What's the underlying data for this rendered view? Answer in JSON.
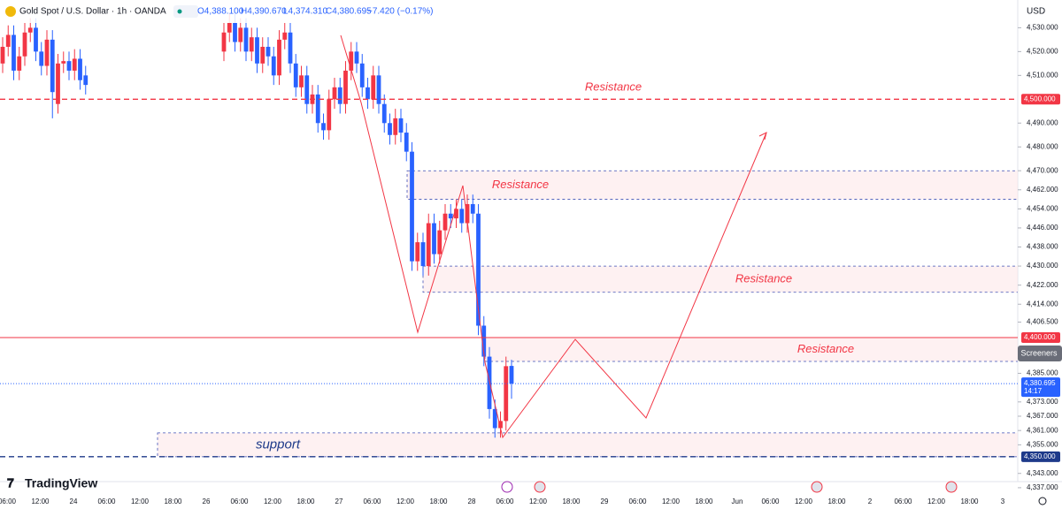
{
  "header": {
    "symbol": "Gold Spot / U.S. Dollar · 1h · OANDA",
    "open": "O4,388.100",
    "high": "H4,390.670",
    "low": "L4,374.310",
    "close": "C4,380.695",
    "change": "−7.420 (−0.17%)",
    "currency": "USD",
    "screeners": "Screeners",
    "brand": "TradingView",
    "countdown": "14:17"
  },
  "chart_data": {
    "type": "candlestick",
    "up_color": "#f23645",
    "down_color": "#2962ff",
    "open": [
      4515,
      4522,
      4527,
      4512,
      4518,
      4528,
      4530,
      4520,
      4514,
      4525,
      4498,
      4515,
      4516,
      4512,
      4517,
      4510,
      null,
      null,
      null,
      null,
      null,
      null,
      null,
      null,
      null,
      null,
      null,
      null,
      null,
      null,
      null,
      null,
      null,
      null,
      null,
      null,
      null,
      null,
      null,
      null,
      4520,
      4528,
      4532,
      4524,
      4530,
      4520,
      4526,
      4515,
      4522,
      4518,
      4510,
      4525,
      4528,
      4515,
      4505,
      4510,
      4498,
      4502,
      4490,
      4487,
      4500,
      4505,
      4498,
      4512,
      4520,
      4515,
      4505,
      4500,
      4510,
      4498,
      4490,
      4485,
      4492,
      4486,
      4478,
      4432,
      4440,
      4430,
      4448,
      4435,
      4445,
      4452,
      4450,
      4454,
      4448,
      4456,
      4452,
      4405,
      4392,
      4370,
      4362,
      4365,
      4388.1
    ],
    "high": [
      4526,
      4531,
      4531,
      4522,
      4532,
      4534,
      4534,
      4524,
      4529,
      4529,
      4519,
      4520,
      4520,
      4521,
      4521,
      4514,
      null,
      null,
      null,
      null,
      null,
      null,
      null,
      null,
      null,
      null,
      null,
      null,
      null,
      null,
      null,
      null,
      null,
      null,
      null,
      null,
      null,
      null,
      null,
      null,
      4532,
      4536,
      4536,
      4534,
      4534,
      4530,
      4530,
      4526,
      4526,
      4522,
      4529,
      4532,
      4532,
      4519,
      4514,
      4514,
      4506,
      4506,
      4494,
      4504,
      4509,
      4509,
      4516,
      4524,
      4524,
      4519,
      4509,
      4514,
      4514,
      4502,
      4494,
      4496,
      4496,
      4490,
      4482,
      4444,
      4444,
      4452,
      4452,
      4449,
      4456,
      4456,
      4458,
      4458,
      4460,
      4460,
      4456,
      4409,
      4396,
      4374,
      4369,
      4392,
      4390.67
    ],
    "low": [
      4511,
      4518,
      4508,
      4508,
      4514,
      4524,
      4516,
      4510,
      4510,
      4492,
      4494,
      4511,
      4508,
      4508,
      4504,
      4502,
      null,
      null,
      null,
      null,
      null,
      null,
      null,
      null,
      null,
      null,
      null,
      null,
      null,
      null,
      null,
      null,
      null,
      null,
      null,
      null,
      null,
      null,
      null,
      null,
      4516,
      4524,
      4520,
      4520,
      4516,
      4516,
      4511,
      4511,
      4514,
      4506,
      4506,
      4521,
      4511,
      4501,
      4501,
      4494,
      4494,
      4486,
      4483,
      4483,
      4496,
      4494,
      4494,
      4508,
      4511,
      4501,
      4496,
      4496,
      4494,
      4486,
      4481,
      4481,
      4482,
      4474,
      4428,
      4428,
      4426,
      4426,
      4431,
      4431,
      4441,
      4446,
      4446,
      4444,
      4444,
      4448,
      4401,
      4388,
      4366,
      4358,
      4358,
      4361,
      4374.31
    ],
    "close": [
      4522,
      4527,
      4512,
      4518,
      4528,
      4530,
      4520,
      4514,
      4525,
      4503,
      4515,
      4516,
      4512,
      4517,
      4508,
      4506,
      null,
      null,
      null,
      null,
      null,
      null,
      null,
      null,
      null,
      null,
      null,
      null,
      null,
      null,
      null,
      null,
      null,
      null,
      null,
      null,
      null,
      null,
      null,
      null,
      4528,
      4532,
      4524,
      4530,
      4520,
      4526,
      4515,
      4522,
      4518,
      4510,
      4525,
      4528,
      4515,
      4505,
      4510,
      4498,
      4502,
      4490,
      4487,
      4500,
      4505,
      4498,
      4512,
      4520,
      4515,
      4505,
      4500,
      4510,
      4498,
      4490,
      4485,
      4492,
      4486,
      4478,
      4432,
      4440,
      4430,
      4448,
      4435,
      4445,
      4452,
      4450,
      4454,
      4448,
      4456,
      4452,
      4405,
      4392,
      4370,
      4362,
      4365,
      4388,
      4380.695
    ],
    "x_labels": [
      "06:00",
      "12:00",
      "24",
      "06:00",
      "12:00",
      "18:00",
      "26",
      "06:00",
      "12:00",
      "18:00",
      "27",
      "06:00",
      "12:00",
      "18:00",
      "28",
      "06:00",
      "12:00",
      "18:00",
      "29",
      "06:00",
      "12:00",
      "18:00",
      "Jun",
      "06:00",
      "12:00",
      "18:00",
      "2",
      "06:00",
      "12:00",
      "18:00",
      "3"
    ],
    "ylim": [
      4342.9,
      4532
    ],
    "yticks": [
      {
        "value": 4530,
        "label": "4,530.000"
      },
      {
        "value": 4520,
        "label": "4,520.000"
      },
      {
        "value": 4510,
        "label": "4,510.000"
      },
      {
        "value": 4490,
        "label": "4,490.000"
      },
      {
        "value": 4480,
        "label": "4,480.000"
      },
      {
        "value": 4470,
        "label": "4,470.000"
      },
      {
        "value": 4462,
        "label": "4,462.000"
      },
      {
        "value": 4454,
        "label": "4,454.000"
      },
      {
        "value": 4446,
        "label": "4,446.000"
      },
      {
        "value": 4438,
        "label": "4,438.000"
      },
      {
        "value": 4430,
        "label": "4,430.000"
      },
      {
        "value": 4422,
        "label": "4,422.000"
      },
      {
        "value": 4414,
        "label": "4,414.000"
      },
      {
        "value": 4406.5,
        "label": "4,406.500"
      },
      {
        "value": 4385,
        "label": "4,385.000"
      },
      {
        "value": 4373,
        "label": "4,373.000"
      },
      {
        "value": 4367,
        "label": "4,367.000"
      },
      {
        "value": 4361,
        "label": "4,361.000"
      },
      {
        "value": 4355,
        "label": "4,355.000"
      },
      {
        "value": 4343,
        "label": "4,343.000"
      },
      {
        "value": 4337,
        "label": "4,337.000"
      }
    ],
    "levels": [
      {
        "value": 4500,
        "label": "4,500.000",
        "color": "#f23645",
        "dashed": true,
        "text": "Resistance"
      },
      {
        "value": 4400,
        "label": "4,400.000",
        "color": "#f23645",
        "dashed": false
      },
      {
        "value": 4350,
        "label": "4,350.000",
        "color": "#1e3a8a",
        "dashed": true
      }
    ],
    "zones": [
      {
        "text": "Resistance",
        "low": 4458,
        "high": 4470
      },
      {
        "text": "Resistance",
        "low": 4419,
        "high": 4430
      },
      {
        "text": "Resistance",
        "low": 4390,
        "high": 4400
      },
      {
        "text": "support",
        "low": 4350,
        "high": 4360
      }
    ],
    "last_price": {
      "value": 4380.695,
      "label": "4,380.695"
    }
  }
}
